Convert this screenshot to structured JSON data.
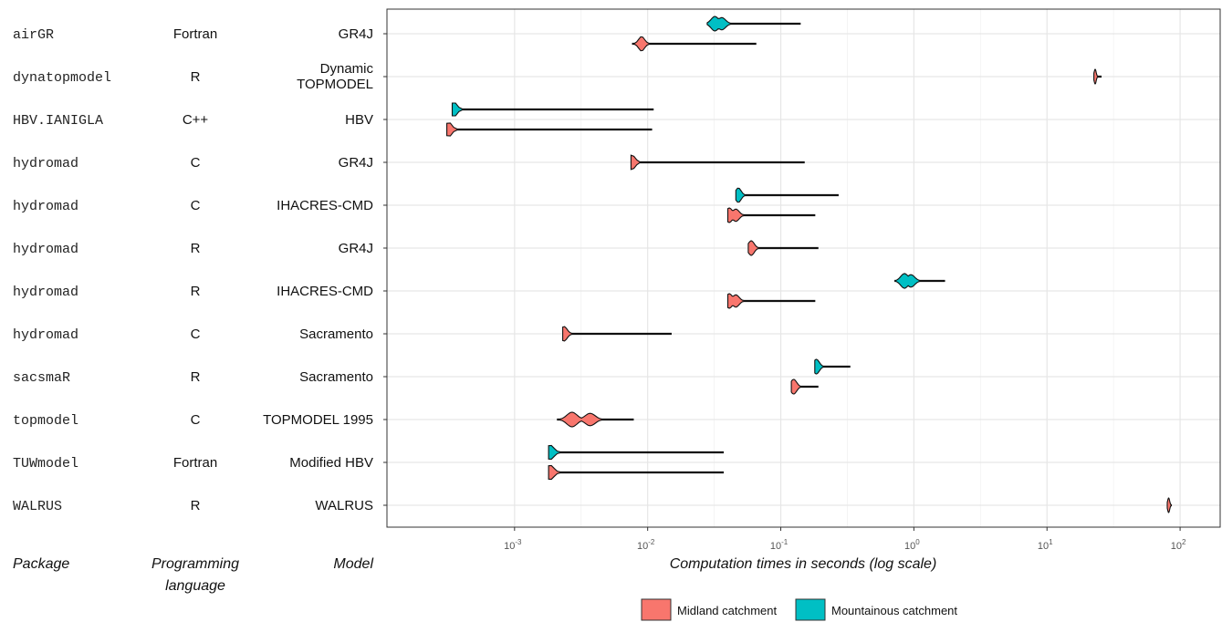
{
  "headers": {
    "package": "Package",
    "language_line1": "Programming",
    "language_line2": "language",
    "model": "Model"
  },
  "legend": [
    {
      "key": "midland",
      "label": "Midland catchment",
      "color": "#F8766D"
    },
    {
      "key": "mountain",
      "label": "Mountainous catchment",
      "color": "#00BFC4"
    }
  ],
  "chart_data": {
    "type": "violin",
    "xlabel": "Computation times in seconds (log scale)",
    "x_scale": "log10",
    "xlim": [
      0.00011,
      200
    ],
    "x_ticks": [
      {
        "value": 0.001,
        "base": "10",
        "exp": "-3"
      },
      {
        "value": 0.01,
        "base": "10",
        "exp": "-2"
      },
      {
        "value": 0.1,
        "base": "10",
        "exp": "-1"
      },
      {
        "value": 1,
        "base": "10",
        "exp": "0"
      },
      {
        "value": 10,
        "base": "10",
        "exp": "1"
      },
      {
        "value": 100,
        "base": "10",
        "exp": "2"
      }
    ],
    "grid": true,
    "legend_position": "bottom",
    "rows": [
      {
        "package": "airGR",
        "language": "Fortran",
        "model": [
          "GR4J"
        ],
        "violins": [
          {
            "catchment": "mountain",
            "min": 0.028,
            "mode": 0.032,
            "max": 0.14,
            "modes": [
              0.032,
              0.036
            ],
            "spread": 0.45
          },
          {
            "catchment": "midland",
            "min": 0.0077,
            "mode": 0.009,
            "max": 0.065,
            "modes": [
              0.009
            ],
            "spread": 0.35
          }
        ]
      },
      {
        "package": "dynatopmodel",
        "language": "R",
        "model": [
          "Dynamic",
          "TOPMODEL"
        ],
        "violins": [
          {
            "catchment": "midland",
            "min": 22.5,
            "mode": 23,
            "max": 25.5,
            "modes": [
              23
            ],
            "spread": 0.12
          }
        ]
      },
      {
        "package": "HBV.IANIGLA",
        "language": "C++",
        "model": [
          "HBV"
        ],
        "violins": [
          {
            "catchment": "mountain",
            "min": 0.00034,
            "mode": 0.00035,
            "max": 0.011,
            "modes": [
              0.00035
            ],
            "spread": 0.38
          },
          {
            "catchment": "midland",
            "min": 0.00031,
            "mode": 0.00032,
            "max": 0.0107,
            "modes": [
              0.00032
            ],
            "spread": 0.38
          }
        ]
      },
      {
        "package": "hydromad",
        "language": "C",
        "model": [
          "GR4J"
        ],
        "violins": [
          {
            "catchment": "midland",
            "min": 0.0075,
            "mode": 0.0076,
            "max": 0.15,
            "modes": [
              0.0076
            ],
            "spread": 0.4
          }
        ]
      },
      {
        "package": "hydromad",
        "language": "C",
        "model": [
          "IHACRES-CMD"
        ],
        "violins": [
          {
            "catchment": "mountain",
            "min": 0.046,
            "mode": 0.048,
            "max": 0.27,
            "modes": [
              0.048
            ],
            "spread": 0.32
          },
          {
            "catchment": "midland",
            "min": 0.04,
            "mode": 0.041,
            "max": 0.18,
            "modes": [
              0.041,
              0.046
            ],
            "spread": 0.38
          }
        ]
      },
      {
        "package": "hydromad",
        "language": "R",
        "model": [
          "GR4J"
        ],
        "violins": [
          {
            "catchment": "midland",
            "min": 0.057,
            "mode": 0.06,
            "max": 0.19,
            "modes": [
              0.06
            ],
            "spread": 0.35
          }
        ]
      },
      {
        "package": "hydromad",
        "language": "R",
        "model": [
          "IHACRES-CMD"
        ],
        "violins": [
          {
            "catchment": "mountain",
            "min": 0.72,
            "mode": 0.95,
            "max": 1.7,
            "modes": [
              0.85,
              0.95
            ],
            "spread": 0.45
          },
          {
            "catchment": "midland",
            "min": 0.04,
            "mode": 0.041,
            "max": 0.18,
            "modes": [
              0.041,
              0.046
            ],
            "spread": 0.38
          }
        ]
      },
      {
        "package": "hydromad",
        "language": "C",
        "model": [
          "Sacramento"
        ],
        "violins": [
          {
            "catchment": "midland",
            "min": 0.0023,
            "mode": 0.00235,
            "max": 0.015,
            "modes": [
              0.00235
            ],
            "spread": 0.38
          }
        ]
      },
      {
        "package": "sacsmaR",
        "language": "R",
        "model": [
          "Sacramento"
        ],
        "violins": [
          {
            "catchment": "mountain",
            "min": 0.18,
            "mode": 0.185,
            "max": 0.33,
            "modes": [
              0.185
            ],
            "spread": 0.35
          },
          {
            "catchment": "midland",
            "min": 0.12,
            "mode": 0.125,
            "max": 0.19,
            "modes": [
              0.125
            ],
            "spread": 0.35
          }
        ]
      },
      {
        "package": "topmodel",
        "language": "C",
        "model": [
          "TOPMODEL 1995"
        ],
        "violins": [
          {
            "catchment": "midland",
            "min": 0.0021,
            "mode": 0.0027,
            "max": 0.0078,
            "modes": [
              0.0027,
              0.0037
            ],
            "spread": 0.6
          }
        ]
      },
      {
        "package": "TUWmodel",
        "language": "Fortran",
        "model": [
          "Modified HBV"
        ],
        "violins": [
          {
            "catchment": "mountain",
            "min": 0.0018,
            "mode": 0.00185,
            "max": 0.037,
            "modes": [
              0.00185
            ],
            "spread": 0.45
          },
          {
            "catchment": "midland",
            "min": 0.0018,
            "mode": 0.00185,
            "max": 0.037,
            "modes": [
              0.00185
            ],
            "spread": 0.45
          }
        ]
      },
      {
        "package": "WALRUS",
        "language": "R",
        "model": [
          "WALRUS"
        ],
        "violins": [
          {
            "catchment": "midland",
            "min": 80,
            "mode": 82,
            "max": 86,
            "modes": [
              82
            ],
            "spread": 0.12
          }
        ]
      }
    ]
  }
}
